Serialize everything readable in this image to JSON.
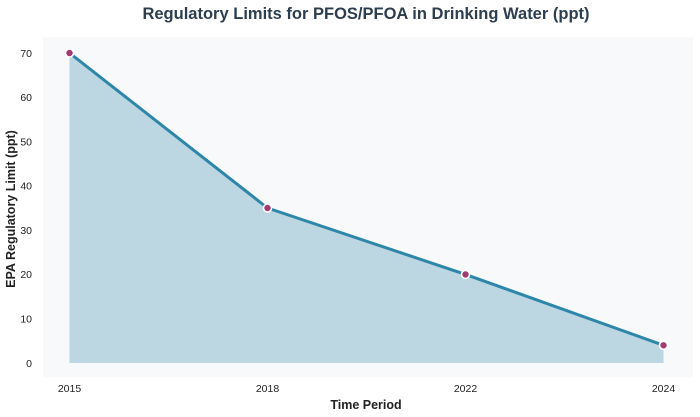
{
  "chart_data": {
    "type": "area",
    "title": "Regulatory Limits for PFOS/PFOA in Drinking Water (ppt)",
    "xlabel": "Time Period",
    "ylabel": "EPA Regulatory Limit (ppt)",
    "categories": [
      "2015",
      "2018",
      "2022",
      "2024"
    ],
    "values": [
      70,
      35,
      20,
      4
    ],
    "ylim": [
      0,
      70
    ],
    "yticks": [
      0,
      10,
      20,
      30,
      40,
      50,
      60,
      70
    ],
    "grid": false,
    "colors": {
      "line": "#2e86ab",
      "fill": "#bcd6e2",
      "marker": "#a23b72",
      "marker_edge": "#ffffff",
      "plot_background": "#f7f9fb",
      "title": "#2c3e50"
    }
  }
}
